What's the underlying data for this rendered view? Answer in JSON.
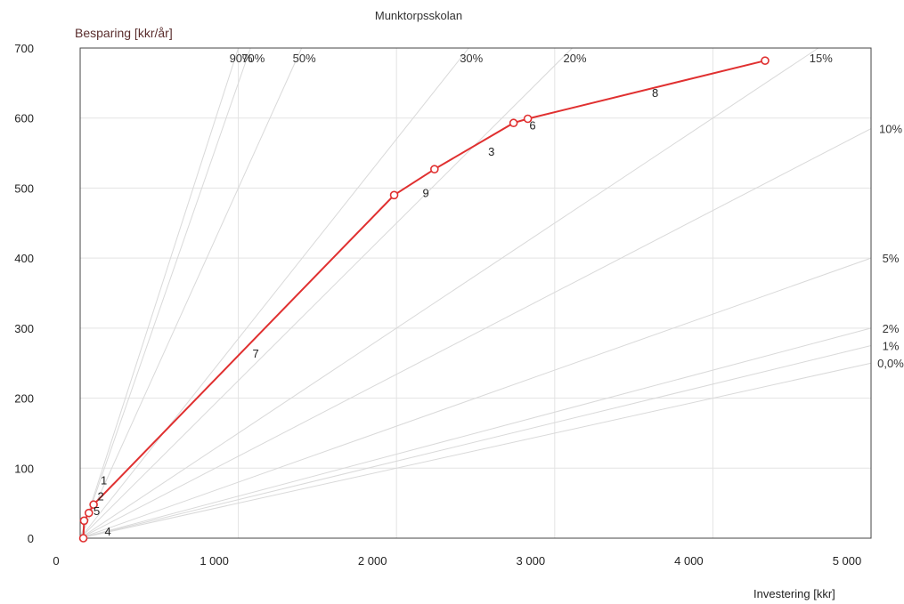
{
  "chart_data": {
    "type": "line",
    "title": "Munktorpsskolan",
    "xlabel": "Investering [kkr]",
    "ylabel": "Besparing [kkr/år]",
    "xlim": [
      0,
      5000
    ],
    "ylim": [
      0,
      700
    ],
    "xticks": [
      0,
      1000,
      2000,
      3000,
      4000,
      5000
    ],
    "xtick_labels": [
      "0",
      "1 000",
      "2 000",
      "3 000",
      "4 000",
      "5 000"
    ],
    "yticks": [
      0,
      100,
      200,
      300,
      400,
      500,
      600,
      700
    ],
    "ytick_labels": [
      "0",
      "100",
      "200",
      "300",
      "400",
      "500",
      "600",
      "700"
    ],
    "grid": true,
    "series": [
      {
        "color": "#e03030",
        "points": [
          {
            "x": 20,
            "y": 0
          },
          {
            "x": 25,
            "y": 25
          },
          {
            "x": 55,
            "y": 36
          },
          {
            "x": 85,
            "y": 48
          },
          {
            "x": 1985,
            "y": 490
          },
          {
            "x": 2240,
            "y": 527
          },
          {
            "x": 2740,
            "y": 593
          },
          {
            "x": 2830,
            "y": 599
          },
          {
            "x": 4330,
            "y": 682
          }
        ]
      }
    ],
    "point_labels": [
      {
        "text": "1",
        "x": 150,
        "y": 77
      },
      {
        "text": "2",
        "x": 130,
        "y": 54
      },
      {
        "text": "5",
        "x": 105,
        "y": 33
      },
      {
        "text": "4",
        "x": 175,
        "y": 4
      },
      {
        "text": "7",
        "x": 1110,
        "y": 258
      },
      {
        "text": "9",
        "x": 2185,
        "y": 487
      },
      {
        "text": "3",
        "x": 2600,
        "y": 546
      },
      {
        "text": "6",
        "x": 2860,
        "y": 584
      },
      {
        "text": "8",
        "x": 3635,
        "y": 630
      }
    ],
    "reference_lines": [
      {
        "label": "90%",
        "slope": 0.7
      },
      {
        "label": "70%",
        "slope": 0.65
      },
      {
        "label": "50%",
        "slope": 0.5
      },
      {
        "label": "30%",
        "slope": 0.285
      },
      {
        "label": "20%",
        "slope": 0.225
      },
      {
        "label": "15%",
        "slope": 0.15
      },
      {
        "label": "10%",
        "slope": 0.117
      },
      {
        "label": "5%",
        "slope": 0.08
      },
      {
        "label": "2%",
        "slope": 0.06
      },
      {
        "label": "1%",
        "slope": 0.055
      },
      {
        "label": "0,0%",
        "slope": 0.05
      }
    ]
  }
}
